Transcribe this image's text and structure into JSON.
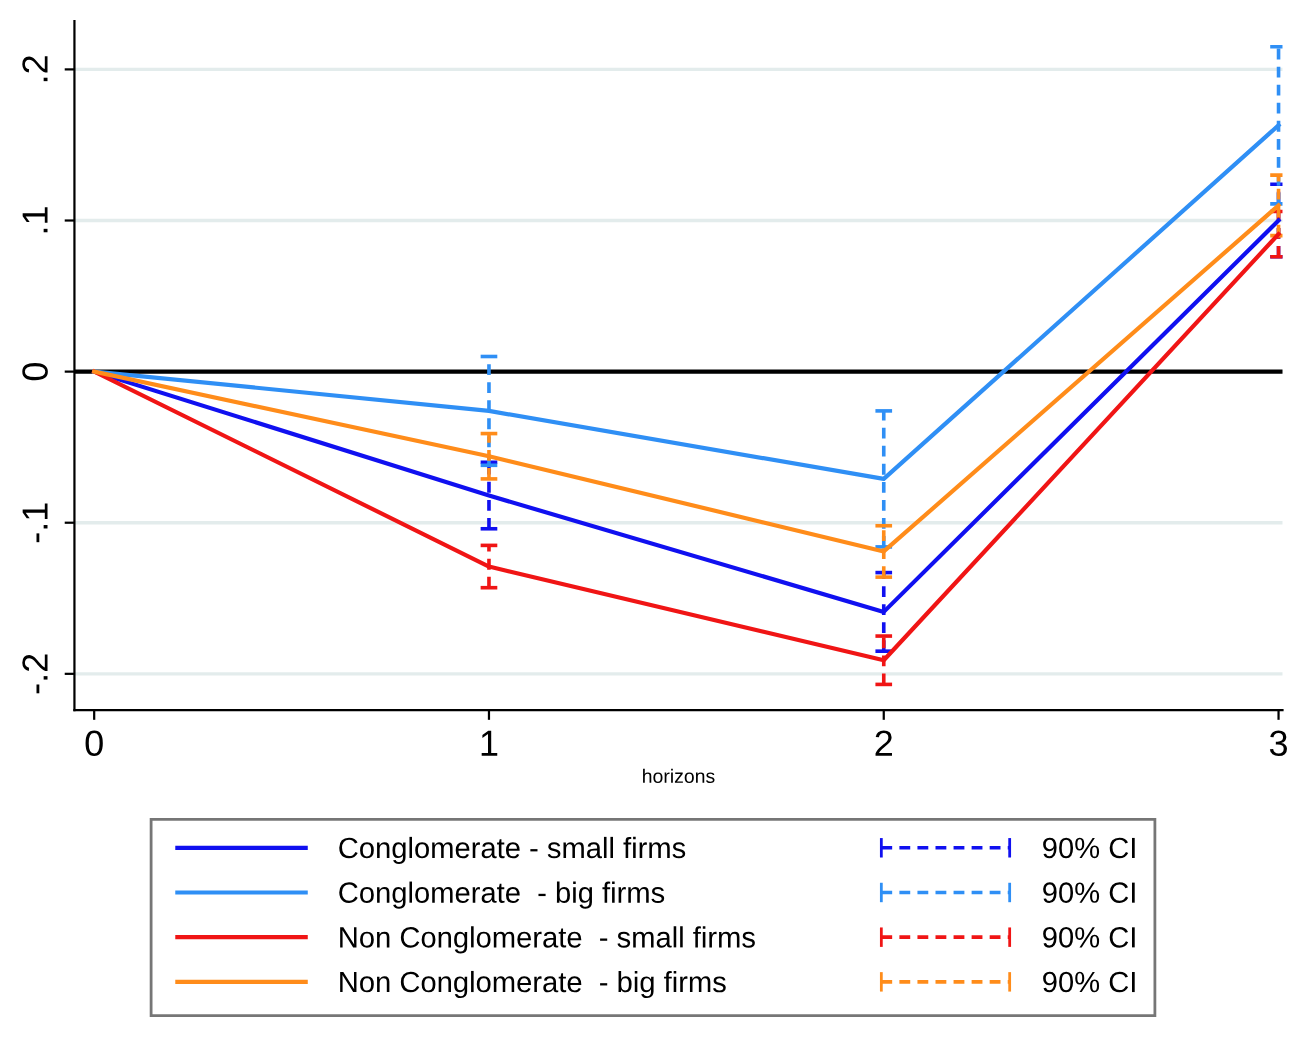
{
  "chart_data": {
    "type": "line",
    "xlabel": "horizons",
    "x": [
      0,
      1,
      2,
      3
    ],
    "series": [
      {
        "name": "Conglomerate - small firms",
        "color": "#1010f0",
        "values": [
          0,
          -0.082,
          -0.159,
          0.1
        ],
        "errors": [
          null,
          0.022,
          0.026,
          0.024
        ]
      },
      {
        "name": "Conglomerate  - big firms",
        "color": "#2f8ff5",
        "values": [
          0,
          -0.026,
          -0.071,
          0.163
        ],
        "errors": [
          null,
          0.036,
          0.045,
          0.052
        ]
      },
      {
        "name": "Non Conglomerate  - small firms",
        "color": "#f01515",
        "values": [
          0,
          -0.129,
          -0.191,
          0.091
        ],
        "errors": [
          null,
          0.014,
          0.016,
          0.015
        ]
      },
      {
        "name": "Non Conglomerate  - big firms",
        "color": "#ff8c1a",
        "values": [
          0,
          -0.056,
          -0.119,
          0.11
        ],
        "errors": [
          null,
          0.015,
          0.017,
          0.02
        ]
      }
    ],
    "annotations": [
      "90% CI",
      "90% CI",
      "90% CI",
      "90% CI"
    ],
    "xlim": [
      -0.05,
      3.01
    ],
    "ylim": [
      -0.224,
      0.232
    ],
    "xticks": [
      0,
      1,
      2,
      3
    ],
    "yticks": [
      {
        "value": -0.2,
        "label": "-.2"
      },
      {
        "value": -0.1,
        "label": "-.1"
      },
      0,
      {
        "value": 0.1,
        "label": ".1"
      },
      {
        "value": 0.2,
        "label": ".2"
      }
    ],
    "ref_lines": [
      {
        "axis": "y",
        "value": 0,
        "color": "#000000"
      }
    ],
    "grid": "y",
    "legend": "bottom",
    "marker": "none",
    "line_style": "solid"
  }
}
